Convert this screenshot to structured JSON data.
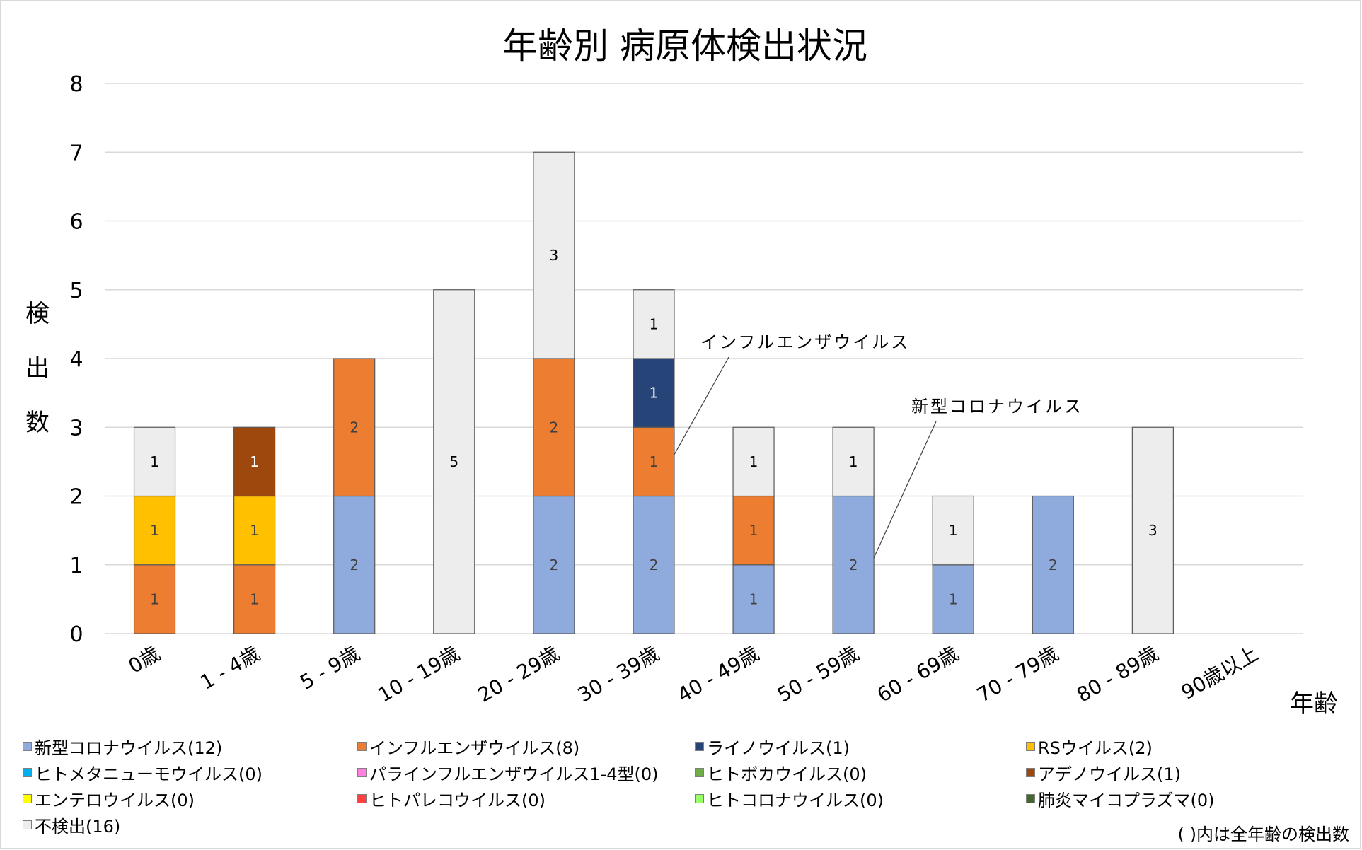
{
  "chart_data": {
    "type": "bar",
    "stacked": true,
    "title": "年齢別 病原体検出状況",
    "ylabel": "検出数",
    "xlabel": "年齢",
    "ylim": [
      0,
      8
    ],
    "yticks": [
      0,
      1,
      2,
      3,
      4,
      5,
      6,
      7,
      8
    ],
    "grid": true,
    "legend_position": "bottom",
    "categories": [
      "0歳",
      "1 - 4歳",
      "5 - 9歳",
      "10 - 19歳",
      "20 - 29歳",
      "30 - 39歳",
      "40 - 49歳",
      "50 - 59歳",
      "60 - 69歳",
      "70 - 79歳",
      "80 - 89歳",
      "90歳以上"
    ],
    "series": [
      {
        "name": "新型コロナウイルス",
        "legend": "新型コロナウイルス(12)",
        "color": "#8FAADC",
        "label_color": "#404040",
        "values": [
          0,
          0,
          2,
          0,
          2,
          2,
          1,
          2,
          1,
          2,
          0,
          0
        ]
      },
      {
        "name": "インフルエンザウイルス",
        "legend": "インフルエンザウイルス(8)",
        "color": "#ED7D31",
        "label_color": "#404040",
        "values": [
          1,
          1,
          2,
          0,
          2,
          1,
          1,
          0,
          0,
          0,
          0,
          0
        ]
      },
      {
        "name": "ライノウイルス",
        "legend": "ライノウイルス(1)",
        "color": "#264478",
        "label_color": "#ffffff",
        "values": [
          0,
          0,
          0,
          0,
          0,
          1,
          0,
          0,
          0,
          0,
          0,
          0
        ]
      },
      {
        "name": "RSウイルス",
        "legend": "RSウイルス(2)",
        "color": "#FFC000",
        "label_color": "#404040",
        "values": [
          1,
          1,
          0,
          0,
          0,
          0,
          0,
          0,
          0,
          0,
          0,
          0
        ]
      },
      {
        "name": "ヒトメタニューモウイルス",
        "legend": "ヒトメタニューモウイルス(0)",
        "color": "#00B0F0",
        "label_color": "#404040",
        "values": [
          0,
          0,
          0,
          0,
          0,
          0,
          0,
          0,
          0,
          0,
          0,
          0
        ]
      },
      {
        "name": "パラインフルエンザウイルス1-4型",
        "legend": "パラインフルエンザウイルス1-4型(0)",
        "color": "#FF80DF",
        "label_color": "#404040",
        "values": [
          0,
          0,
          0,
          0,
          0,
          0,
          0,
          0,
          0,
          0,
          0,
          0
        ]
      },
      {
        "name": "ヒトボカウイルス",
        "legend": "ヒトボカウイルス(0)",
        "color": "#70AD47",
        "label_color": "#404040",
        "values": [
          0,
          0,
          0,
          0,
          0,
          0,
          0,
          0,
          0,
          0,
          0,
          0
        ]
      },
      {
        "name": "アデノウイルス",
        "legend": "アデノウイルス(1)",
        "color": "#9E480E",
        "label_color": "#ffffff",
        "values": [
          0,
          1,
          0,
          0,
          0,
          0,
          0,
          0,
          0,
          0,
          0,
          0
        ]
      },
      {
        "name": "エンテロウイルス",
        "legend": "エンテロウイルス(0)",
        "color": "#FFFF00",
        "label_color": "#404040",
        "values": [
          0,
          0,
          0,
          0,
          0,
          0,
          0,
          0,
          0,
          0,
          0,
          0
        ]
      },
      {
        "name": "ヒトパレコウイルス",
        "legend": "ヒトパレコウイルス(0)",
        "color": "#FF4040",
        "label_color": "#404040",
        "values": [
          0,
          0,
          0,
          0,
          0,
          0,
          0,
          0,
          0,
          0,
          0,
          0
        ]
      },
      {
        "name": "ヒトコロナウイルス",
        "legend": "ヒトコロナウイルス(0)",
        "color": "#99FF66",
        "label_color": "#404040",
        "values": [
          0,
          0,
          0,
          0,
          0,
          0,
          0,
          0,
          0,
          0,
          0,
          0
        ]
      },
      {
        "name": "肺炎マイコプラズマ",
        "legend": "肺炎マイコプラズマ(0)",
        "color": "#43682B",
        "label_color": "#ffffff",
        "values": [
          0,
          0,
          0,
          0,
          0,
          0,
          0,
          0,
          0,
          0,
          0,
          0
        ]
      },
      {
        "name": "不検出",
        "legend": "不検出(16)",
        "color": "#EDEDED",
        "label_color": "#000000",
        "values": [
          1,
          0,
          0,
          5,
          3,
          1,
          1,
          1,
          1,
          0,
          3,
          0
        ]
      }
    ],
    "hidden_labels": [
      {
        "series": "新型コロナウイルス",
        "category": "70 - 79歳",
        "note": "label shown as 2"
      }
    ],
    "annotations": [
      {
        "text": "インフルエンザウイルス",
        "series": "インフルエンザウイルス",
        "category": "30 - 39歳"
      },
      {
        "text": "新型コロナウイルス",
        "series": "新型コロナウイルス",
        "category": "50 - 59歳"
      }
    ],
    "footnote": "( )内は全年齢の検出数"
  }
}
